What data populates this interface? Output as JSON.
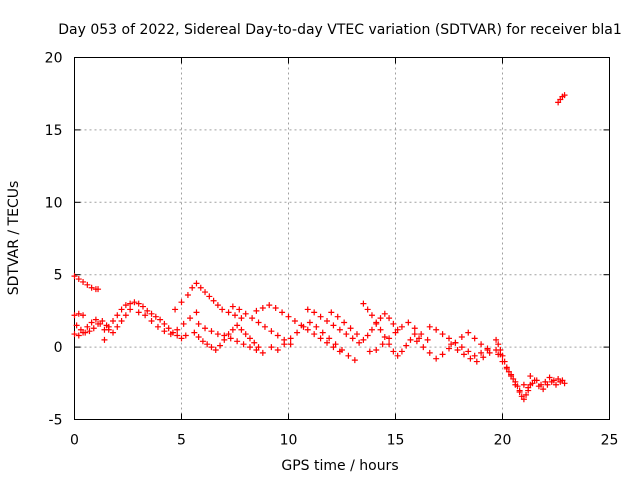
{
  "chart_data": {
    "type": "scatter",
    "title": "Day 053 of 2022, Sidereal Day-to-day VTEC variation (SDTVAR) for receiver bla1",
    "xlabel": "GPS time / hours",
    "ylabel": "SDTVAR / TECUs",
    "xlim": [
      0,
      25
    ],
    "ylim": [
      -5,
      20
    ],
    "xticks": [
      "0",
      "5",
      "10",
      "15",
      "20",
      "25"
    ],
    "yticks": [
      "-5",
      "0",
      "5",
      "10",
      "15",
      "20"
    ],
    "grid": true,
    "marker": "+",
    "color": "#ff0000",
    "series": [
      {
        "name": "SDTVAR",
        "points": [
          [
            0.0,
            4.9
          ],
          [
            0.2,
            4.7
          ],
          [
            0.4,
            4.5
          ],
          [
            0.6,
            4.3
          ],
          [
            0.8,
            4.1
          ],
          [
            1.0,
            4.0
          ],
          [
            1.1,
            4.0
          ],
          [
            0.0,
            2.2
          ],
          [
            0.2,
            2.3
          ],
          [
            0.4,
            2.2
          ],
          [
            0.1,
            1.5
          ],
          [
            0.3,
            1.2
          ],
          [
            0.5,
            1.0
          ],
          [
            0.7,
            1.1
          ],
          [
            0.9,
            1.3
          ],
          [
            1.1,
            1.6
          ],
          [
            1.3,
            1.8
          ],
          [
            1.5,
            1.5
          ],
          [
            1.6,
            1.2
          ],
          [
            1.4,
            0.5
          ],
          [
            0.0,
            0.9
          ],
          [
            0.2,
            0.8
          ],
          [
            0.4,
            1.0
          ],
          [
            0.6,
            1.4
          ],
          [
            0.8,
            1.7
          ],
          [
            1.0,
            1.9
          ],
          [
            1.2,
            1.6
          ],
          [
            1.4,
            1.2
          ],
          [
            1.6,
            1.4
          ],
          [
            1.8,
            1.8
          ],
          [
            2.0,
            2.2
          ],
          [
            2.2,
            2.6
          ],
          [
            2.4,
            2.9
          ],
          [
            2.6,
            3.0
          ],
          [
            1.8,
            1.0
          ],
          [
            2.0,
            1.4
          ],
          [
            2.2,
            1.8
          ],
          [
            2.4,
            2.2
          ],
          [
            2.6,
            2.6
          ],
          [
            2.8,
            3.1
          ],
          [
            3.0,
            3.0
          ],
          [
            3.2,
            2.8
          ],
          [
            3.4,
            2.5
          ],
          [
            3.6,
            2.3
          ],
          [
            3.8,
            2.1
          ],
          [
            4.0,
            1.9
          ],
          [
            4.2,
            1.6
          ],
          [
            4.4,
            1.3
          ],
          [
            4.6,
            1.0
          ],
          [
            4.8,
            0.8
          ],
          [
            5.0,
            0.6
          ],
          [
            5.2,
            0.8
          ],
          [
            3.0,
            2.4
          ],
          [
            3.3,
            2.2
          ],
          [
            3.6,
            1.8
          ],
          [
            3.9,
            1.4
          ],
          [
            4.2,
            1.1
          ],
          [
            4.5,
            0.9
          ],
          [
            4.8,
            1.2
          ],
          [
            5.1,
            1.6
          ],
          [
            5.4,
            2.0
          ],
          [
            5.7,
            2.4
          ],
          [
            4.7,
            2.6
          ],
          [
            5.0,
            3.1
          ],
          [
            5.3,
            3.6
          ],
          [
            5.5,
            4.1
          ],
          [
            5.7,
            4.4
          ],
          [
            5.9,
            4.1
          ],
          [
            6.1,
            3.8
          ],
          [
            6.3,
            3.5
          ],
          [
            6.5,
            3.2
          ],
          [
            6.7,
            2.9
          ],
          [
            6.9,
            2.6
          ],
          [
            7.2,
            2.4
          ],
          [
            7.5,
            2.2
          ],
          [
            7.8,
            2.0
          ],
          [
            5.6,
            1.0
          ],
          [
            5.8,
            0.7
          ],
          [
            6.0,
            0.4
          ],
          [
            6.2,
            0.2
          ],
          [
            6.4,
            0.0
          ],
          [
            6.6,
            -0.2
          ],
          [
            6.8,
            0.1
          ],
          [
            7.0,
            0.5
          ],
          [
            7.2,
            0.9
          ],
          [
            7.4,
            1.2
          ],
          [
            7.6,
            1.5
          ],
          [
            7.8,
            1.2
          ],
          [
            8.0,
            0.9
          ],
          [
            8.2,
            0.6
          ],
          [
            8.4,
            0.3
          ],
          [
            8.6,
            0.0
          ],
          [
            5.8,
            1.6
          ],
          [
            6.1,
            1.3
          ],
          [
            6.4,
            1.1
          ],
          [
            6.7,
            0.9
          ],
          [
            7.0,
            0.8
          ],
          [
            7.3,
            0.6
          ],
          [
            7.6,
            0.4
          ],
          [
            7.9,
            0.2
          ],
          [
            8.2,
            0.0
          ],
          [
            8.5,
            -0.2
          ],
          [
            8.8,
            -0.4
          ],
          [
            7.4,
            2.8
          ],
          [
            7.7,
            2.6
          ],
          [
            8.0,
            2.3
          ],
          [
            8.3,
            2.0
          ],
          [
            8.6,
            1.7
          ],
          [
            8.9,
            1.4
          ],
          [
            9.2,
            1.1
          ],
          [
            9.5,
            0.8
          ],
          [
            9.8,
            0.5
          ],
          [
            10.1,
            0.2
          ],
          [
            8.5,
            2.5
          ],
          [
            8.8,
            2.7
          ],
          [
            9.1,
            2.9
          ],
          [
            9.4,
            2.7
          ],
          [
            9.7,
            2.4
          ],
          [
            10.0,
            2.1
          ],
          [
            10.3,
            1.8
          ],
          [
            10.6,
            1.5
          ],
          [
            10.9,
            1.2
          ],
          [
            11.2,
            0.9
          ],
          [
            11.5,
            0.6
          ],
          [
            11.8,
            0.3
          ],
          [
            12.1,
            0.0
          ],
          [
            12.4,
            -0.3
          ],
          [
            9.2,
            0.0
          ],
          [
            9.5,
            -0.2
          ],
          [
            9.8,
            0.2
          ],
          [
            10.1,
            0.6
          ],
          [
            10.4,
            1.0
          ],
          [
            10.7,
            1.4
          ],
          [
            11.0,
            1.7
          ],
          [
            11.3,
            1.4
          ],
          [
            11.6,
            1.0
          ],
          [
            11.9,
            0.6
          ],
          [
            12.2,
            0.2
          ],
          [
            12.5,
            -0.2
          ],
          [
            12.8,
            -0.6
          ],
          [
            13.1,
            -0.9
          ],
          [
            10.9,
            2.6
          ],
          [
            11.2,
            2.4
          ],
          [
            11.5,
            2.1
          ],
          [
            11.8,
            1.8
          ],
          [
            12.1,
            1.5
          ],
          [
            12.4,
            1.2
          ],
          [
            12.7,
            0.9
          ],
          [
            13.0,
            0.6
          ],
          [
            13.3,
            0.3
          ],
          [
            12.0,
            2.4
          ],
          [
            12.3,
            2.1
          ],
          [
            12.6,
            1.7
          ],
          [
            12.9,
            1.3
          ],
          [
            13.2,
            0.9
          ],
          [
            13.5,
            0.5
          ],
          [
            13.7,
            0.8
          ],
          [
            13.9,
            1.2
          ],
          [
            14.1,
            1.6
          ],
          [
            14.3,
            2.0
          ],
          [
            14.5,
            2.3
          ],
          [
            14.7,
            2.0
          ],
          [
            14.9,
            1.6
          ],
          [
            15.1,
            1.2
          ],
          [
            13.5,
            3.0
          ],
          [
            13.7,
            2.6
          ],
          [
            13.9,
            2.2
          ],
          [
            14.1,
            1.7
          ],
          [
            14.3,
            1.2
          ],
          [
            14.5,
            0.7
          ],
          [
            14.7,
            0.2
          ],
          [
            14.9,
            -0.3
          ],
          [
            15.1,
            -0.6
          ],
          [
            15.3,
            -0.3
          ],
          [
            15.5,
            0.1
          ],
          [
            15.7,
            0.5
          ],
          [
            15.9,
            0.9
          ],
          [
            16.1,
            0.6
          ],
          [
            13.8,
            -0.3
          ],
          [
            14.1,
            -0.2
          ],
          [
            14.4,
            0.2
          ],
          [
            14.7,
            0.6
          ],
          [
            15.0,
            1.0
          ],
          [
            15.3,
            1.4
          ],
          [
            15.6,
            1.7
          ],
          [
            15.9,
            1.3
          ],
          [
            16.2,
            0.9
          ],
          [
            16.5,
            0.5
          ],
          [
            16.0,
            0.4
          ],
          [
            16.3,
            0.0
          ],
          [
            16.6,
            -0.4
          ],
          [
            16.9,
            -0.8
          ],
          [
            17.2,
            -0.5
          ],
          [
            17.5,
            -0.1
          ],
          [
            17.8,
            0.3
          ],
          [
            18.1,
            0.7
          ],
          [
            18.4,
            1.0
          ],
          [
            18.7,
            0.6
          ],
          [
            19.0,
            0.2
          ],
          [
            19.3,
            -0.2
          ],
          [
            16.6,
            1.4
          ],
          [
            16.9,
            1.2
          ],
          [
            17.2,
            0.9
          ],
          [
            17.5,
            0.6
          ],
          [
            17.8,
            0.3
          ],
          [
            18.1,
            0.0
          ],
          [
            18.4,
            -0.3
          ],
          [
            18.7,
            -0.6
          ],
          [
            19.0,
            -0.4
          ],
          [
            19.3,
            -0.1
          ],
          [
            17.6,
            0.2
          ],
          [
            17.9,
            -0.2
          ],
          [
            18.2,
            -0.5
          ],
          [
            18.5,
            -0.8
          ],
          [
            18.8,
            -1.0
          ],
          [
            19.1,
            -0.7
          ],
          [
            19.4,
            -0.4
          ],
          [
            19.7,
            -0.2
          ],
          [
            19.9,
            -0.5
          ],
          [
            19.7,
            0.5
          ],
          [
            19.8,
            0.2
          ],
          [
            19.9,
            -0.2
          ],
          [
            20.0,
            -0.6
          ],
          [
            20.1,
            -1.0
          ],
          [
            20.2,
            -1.4
          ],
          [
            20.3,
            -1.7
          ],
          [
            20.4,
            -1.9
          ],
          [
            20.5,
            -2.2
          ],
          [
            20.6,
            -2.4
          ],
          [
            20.7,
            -2.7
          ],
          [
            20.8,
            -3.0
          ],
          [
            19.8,
            -0.5
          ],
          [
            20.0,
            -1.0
          ],
          [
            20.2,
            -1.5
          ],
          [
            20.4,
            -2.0
          ],
          [
            20.6,
            -2.6
          ],
          [
            20.8,
            -3.1
          ],
          [
            20.9,
            -3.4
          ],
          [
            21.0,
            -3.6
          ],
          [
            21.1,
            -3.3
          ],
          [
            21.2,
            -3.0
          ],
          [
            21.3,
            -2.6
          ],
          [
            21.0,
            -2.6
          ],
          [
            21.2,
            -2.8
          ],
          [
            21.4,
            -2.5
          ],
          [
            21.6,
            -2.3
          ],
          [
            21.8,
            -2.6
          ],
          [
            22.0,
            -2.4
          ],
          [
            22.2,
            -2.1
          ],
          [
            22.4,
            -2.3
          ],
          [
            22.6,
            -2.2
          ],
          [
            22.8,
            -2.3
          ],
          [
            22.9,
            -2.5
          ],
          [
            21.3,
            -2.0
          ],
          [
            21.5,
            -2.3
          ],
          [
            21.7,
            -2.7
          ],
          [
            21.9,
            -2.9
          ],
          [
            22.1,
            -2.6
          ],
          [
            22.3,
            -2.4
          ],
          [
            22.5,
            -2.6
          ],
          [
            22.7,
            -2.4
          ],
          [
            22.6,
            16.9
          ],
          [
            22.7,
            17.1
          ],
          [
            22.8,
            17.3
          ],
          [
            22.9,
            17.4
          ]
        ]
      }
    ]
  }
}
